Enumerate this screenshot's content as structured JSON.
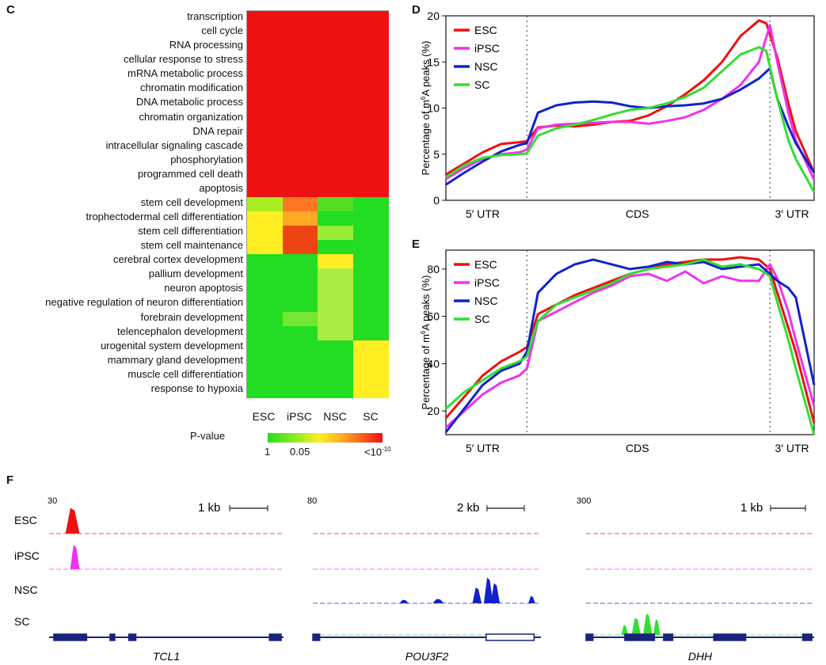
{
  "panels": {
    "c": "C",
    "d": "D",
    "e": "E",
    "f": "F"
  },
  "heatmap": {
    "rows": [
      "transcription",
      "cell cycle",
      "RNA processing",
      "cellular response to stress",
      "mRNA metabolic process",
      "chromatin modification",
      "DNA metabolic process",
      "chromatin organization",
      "DNA repair",
      "intracellular signaling cascade",
      "phosphorylation",
      "programmed cell death",
      "apoptosis",
      "stem cell development",
      "trophectodermal cell differentiation",
      "stem cell differentiation",
      "stem cell maintenance",
      "cerebral cortex development",
      "pallium development",
      "neuron apoptosis",
      "negative regulation of neuron differentiation",
      "forebrain development",
      "telencephalon development",
      "urogenital system development",
      "mammary gland development",
      "muscle cell differentiation",
      "response to hypoxia"
    ],
    "columns": [
      "ESC",
      "iPSC",
      "NSC",
      "SC"
    ],
    "colors": [
      [
        "#ee1111",
        "#ee1111",
        "#ee1111",
        "#ee1111"
      ],
      [
        "#ee1111",
        "#ee1111",
        "#ee1111",
        "#ee1111"
      ],
      [
        "#ee1111",
        "#ee1111",
        "#ee1111",
        "#ee1111"
      ],
      [
        "#ee1111",
        "#ee1111",
        "#ee1111",
        "#ee1111"
      ],
      [
        "#ee1111",
        "#ee1111",
        "#ee1111",
        "#ee1111"
      ],
      [
        "#ee1111",
        "#ee1111",
        "#ee1111",
        "#ee1111"
      ],
      [
        "#ee1111",
        "#ee1111",
        "#ee1111",
        "#ee1111"
      ],
      [
        "#ee1111",
        "#ee1111",
        "#ee1111",
        "#ee1111"
      ],
      [
        "#ee1111",
        "#ee1111",
        "#ee1111",
        "#ee1111"
      ],
      [
        "#ee1111",
        "#ee1111",
        "#ee1111",
        "#ee1111"
      ],
      [
        "#ee1111",
        "#ee1111",
        "#ee1111",
        "#ee1111"
      ],
      [
        "#ee1111",
        "#ee1111",
        "#ee1111",
        "#ee1111"
      ],
      [
        "#ee1111",
        "#ee1111",
        "#ee1111",
        "#ee1111"
      ],
      [
        "#aaee22",
        "#ff7722",
        "#55dd22",
        "#22dd22"
      ],
      [
        "#ffee22",
        "#ffaa22",
        "#22dd22",
        "#22dd22"
      ],
      [
        "#ffee22",
        "#ee4411",
        "#99ee33",
        "#22dd22"
      ],
      [
        "#ffee22",
        "#ee4411",
        "#22dd22",
        "#22dd22"
      ],
      [
        "#22dd22",
        "#22dd22",
        "#ffee22",
        "#22dd22"
      ],
      [
        "#22dd22",
        "#22dd22",
        "#aaee44",
        "#22dd22"
      ],
      [
        "#22dd22",
        "#22dd22",
        "#aaee44",
        "#22dd22"
      ],
      [
        "#22dd22",
        "#22dd22",
        "#aaee44",
        "#22dd22"
      ],
      [
        "#22dd22",
        "#77e633",
        "#aaee44",
        "#22dd22"
      ],
      [
        "#22dd22",
        "#22dd22",
        "#aaee44",
        "#22dd22"
      ],
      [
        "#22dd22",
        "#22dd22",
        "#22dd22",
        "#ffee22"
      ],
      [
        "#22dd22",
        "#22dd22",
        "#22dd22",
        "#ffee22"
      ],
      [
        "#22dd22",
        "#22dd22",
        "#22dd22",
        "#ffee22"
      ],
      [
        "#22dd22",
        "#22dd22",
        "#22dd22",
        "#ffee22"
      ]
    ],
    "legend": {
      "title": "P-value",
      "ticks": [
        "1",
        "0.05",
        "<10"
      ],
      "exponent": "-10"
    }
  },
  "chart_data": [
    {
      "type": "line",
      "panel": "D",
      "ylabel_parts": [
        "Percentage of m",
        "6",
        "A  peaks (%)"
      ],
      "xregions": [
        "5′ UTR",
        "CDS",
        "3′ UTR"
      ],
      "ylim": [
        0,
        20
      ],
      "yticks": [
        "0",
        "5",
        "10",
        "15",
        "20"
      ],
      "series": [
        {
          "name": "ESC",
          "color": "#ee1111",
          "x": [
            0,
            0.05,
            0.1,
            0.15,
            0.2,
            0.22,
            0.25,
            0.3,
            0.35,
            0.4,
            0.45,
            0.5,
            0.55,
            0.6,
            0.65,
            0.7,
            0.75,
            0.8,
            0.85,
            0.87,
            0.9,
            0.93,
            0.95,
            1.0
          ],
          "y": [
            2.8,
            4,
            5.2,
            6.1,
            6.3,
            6.4,
            7.9,
            8.1,
            8,
            8.2,
            8.5,
            8.6,
            9.2,
            10.2,
            11.5,
            13,
            15,
            17.8,
            19.5,
            19.2,
            15.5,
            10.5,
            7.5,
            3
          ]
        },
        {
          "name": "iPSC",
          "color": "#ee33ee",
          "x": [
            0,
            0.05,
            0.1,
            0.15,
            0.2,
            0.22,
            0.25,
            0.3,
            0.35,
            0.4,
            0.45,
            0.5,
            0.55,
            0.6,
            0.65,
            0.7,
            0.75,
            0.8,
            0.85,
            0.88,
            0.9,
            0.93,
            0.95,
            1.0
          ],
          "y": [
            2.3,
            3.5,
            4.5,
            5,
            5.2,
            5.5,
            7.8,
            8.2,
            8.3,
            8.4,
            8.5,
            8.5,
            8.3,
            8.6,
            9,
            9.8,
            11,
            12.5,
            15,
            19,
            15,
            9.5,
            6.5,
            2.2
          ]
        },
        {
          "name": "NSC",
          "color": "#1122cc",
          "x": [
            0,
            0.05,
            0.1,
            0.15,
            0.2,
            0.22,
            0.25,
            0.3,
            0.35,
            0.4,
            0.45,
            0.5,
            0.55,
            0.6,
            0.65,
            0.7,
            0.75,
            0.8,
            0.85,
            0.88,
            0.9,
            0.93,
            0.95,
            1.0
          ],
          "y": [
            1.7,
            3,
            4.2,
            5.3,
            6,
            6.2,
            9.5,
            10.3,
            10.6,
            10.7,
            10.6,
            10.2,
            10,
            10.2,
            10.3,
            10.5,
            11,
            12,
            13.2,
            14.3,
            11,
            8,
            6.2,
            3
          ]
        },
        {
          "name": "SC",
          "color": "#33dd33",
          "x": [
            0,
            0.05,
            0.1,
            0.15,
            0.2,
            0.22,
            0.25,
            0.3,
            0.35,
            0.4,
            0.45,
            0.5,
            0.55,
            0.6,
            0.65,
            0.7,
            0.75,
            0.8,
            0.85,
            0.87,
            0.9,
            0.93,
            0.95,
            1.0
          ],
          "y": [
            2.5,
            3.8,
            4.6,
            4.9,
            5,
            5.1,
            7,
            7.8,
            8.2,
            8.7,
            9.3,
            9.8,
            10,
            10.5,
            11.2,
            12.2,
            14,
            15.8,
            16.6,
            16.2,
            11,
            6.5,
            4.5,
            0.9
          ]
        }
      ]
    },
    {
      "type": "line",
      "panel": "E",
      "ylabel_parts": [
        "Percentage of m",
        "6",
        "A  peaks (%)"
      ],
      "xregions": [
        "5′ UTR",
        "CDS",
        "3′ UTR"
      ],
      "ylim": [
        10,
        88
      ],
      "yticks": [
        "20",
        "40",
        "60",
        "80"
      ],
      "series": [
        {
          "name": "ESC",
          "color": "#ee1111",
          "x": [
            0,
            0.05,
            0.1,
            0.15,
            0.2,
            0.22,
            0.25,
            0.3,
            0.35,
            0.4,
            0.45,
            0.5,
            0.55,
            0.6,
            0.65,
            0.7,
            0.75,
            0.8,
            0.85,
            0.88,
            0.9,
            0.93,
            0.95,
            1.0
          ],
          "y": [
            17,
            26,
            35,
            41,
            45,
            47,
            61,
            65,
            69,
            72,
            75,
            78,
            80,
            82,
            83,
            84,
            84,
            85,
            84,
            80,
            70,
            55,
            45,
            15
          ]
        },
        {
          "name": "iPSC",
          "color": "#ee33ee",
          "x": [
            0,
            0.05,
            0.1,
            0.15,
            0.2,
            0.22,
            0.25,
            0.3,
            0.35,
            0.4,
            0.45,
            0.5,
            0.55,
            0.6,
            0.65,
            0.7,
            0.75,
            0.8,
            0.85,
            0.88,
            0.9,
            0.93,
            0.95,
            1.0
          ],
          "y": [
            13,
            20,
            27,
            32,
            35,
            38,
            58,
            62,
            66,
            70,
            73,
            77,
            78,
            75,
            79,
            74,
            77,
            75,
            75,
            82,
            76,
            62,
            50,
            22
          ]
        },
        {
          "name": "NSC",
          "color": "#1122cc",
          "x": [
            0,
            0.05,
            0.1,
            0.15,
            0.2,
            0.22,
            0.25,
            0.3,
            0.35,
            0.4,
            0.45,
            0.5,
            0.55,
            0.6,
            0.65,
            0.7,
            0.75,
            0.8,
            0.85,
            0.88,
            0.9,
            0.93,
            0.95,
            1.0
          ],
          "y": [
            11,
            21,
            31,
            37,
            40,
            45,
            70,
            78,
            82,
            84,
            82,
            80,
            81,
            83,
            82,
            83,
            80,
            81,
            82,
            78,
            75,
            72,
            68,
            31
          ]
        },
        {
          "name": "SC",
          "color": "#33dd33",
          "x": [
            0,
            0.05,
            0.1,
            0.15,
            0.2,
            0.22,
            0.25,
            0.3,
            0.35,
            0.4,
            0.45,
            0.5,
            0.55,
            0.6,
            0.65,
            0.7,
            0.75,
            0.8,
            0.85,
            0.88,
            0.9,
            0.93,
            0.95,
            1.0
          ],
          "y": [
            21,
            28,
            33,
            38,
            41,
            43,
            58,
            65,
            68,
            71,
            74,
            78,
            80,
            81,
            82,
            84,
            81,
            82,
            80,
            77,
            66,
            50,
            38,
            10
          ]
        }
      ]
    }
  ],
  "tracks": {
    "rows": [
      "ESC",
      "iPSC",
      "NSC",
      "SC"
    ],
    "loci": [
      {
        "gene": "TCL1",
        "scale": "30",
        "bar": "1 kb"
      },
      {
        "gene": "POU3F2",
        "scale": "80",
        "bar": "2 kb"
      },
      {
        "gene": "DHH",
        "scale": "300",
        "bar": "1 kb"
      }
    ],
    "colors": {
      "ESC": "#ee1111",
      "iPSC": "#ee33ee",
      "NSC": "#1122cc",
      "SC": "#33dd33",
      "gene": "#1a237e"
    }
  }
}
